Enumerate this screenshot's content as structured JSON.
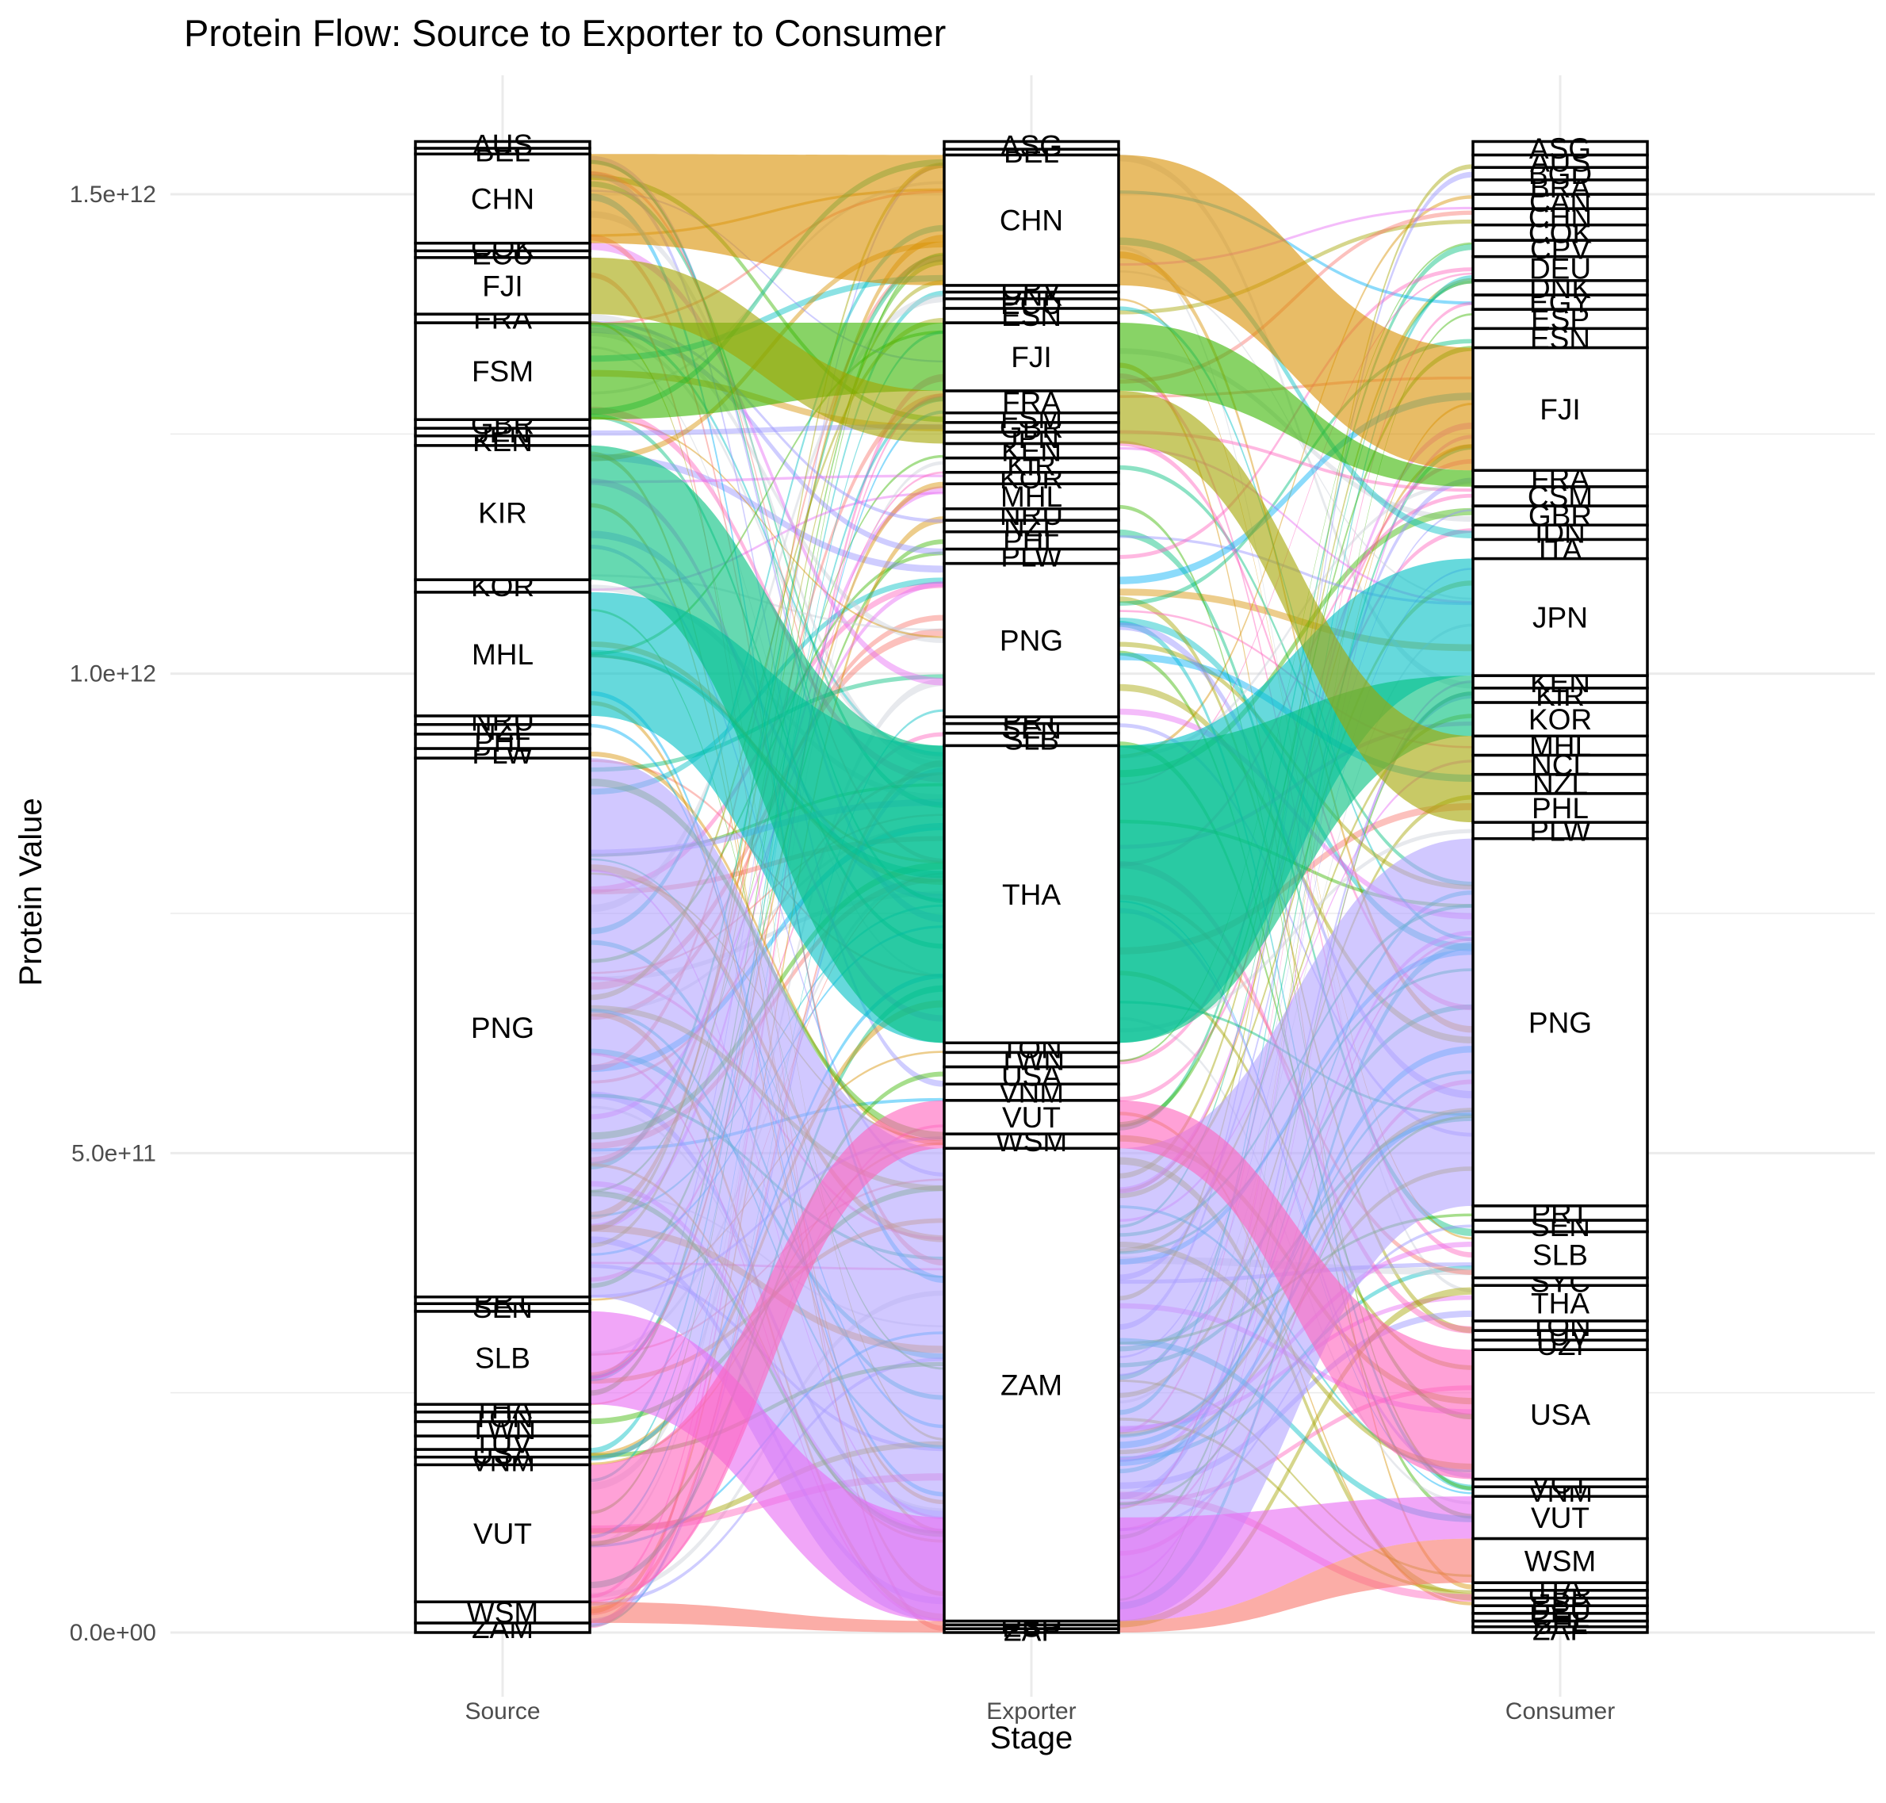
{
  "title": "Protein Flow: Source to Exporter to Consumer",
  "colors": {
    "AUS": "#F8766D",
    "CHN": "#D89000",
    "FJI": "#A3A500",
    "FRA": "#72B000",
    "FSM": "#39B600",
    "KIR": "#00BF7D",
    "MHL": "#00BFC4",
    "PNG": "#B2A3FF",
    "SLB": "#E76BF3",
    "VUT": "#FF62BC",
    "WSM": "#F8766D",
    "misc": "#C9CED6"
  },
  "chart_data": {
    "type": "alluvial",
    "title": "Protein Flow: Source to Exporter to Consumer",
    "xlabel": "Stage",
    "ylabel": "Protein Value",
    "ylim": [
      0,
      1550000000000
    ],
    "y_ticks": [
      0,
      500000000000,
      1000000000000,
      1500000000000
    ],
    "y_tick_labels": [
      "0.0e+00",
      "5.0e+11",
      "1.0e+12",
      "1.5e+12"
    ],
    "axes": [
      "Source",
      "Exporter",
      "Consumer"
    ],
    "strata": {
      "Source": [
        {
          "label": "ZAM",
          "lo": 0,
          "hi": 10000000000
        },
        {
          "label": "WSM",
          "lo": 10000000000,
          "hi": 32000000000
        },
        {
          "label": "VUT",
          "lo": 32000000000,
          "hi": 175000000000
        },
        {
          "label": "VNM",
          "lo": 175000000000,
          "hi": 183000000000
        },
        {
          "label": "USA",
          "lo": 183000000000,
          "hi": 191000000000
        },
        {
          "label": "TUV",
          "lo": 191000000000,
          "hi": 205000000000
        },
        {
          "label": "TWN",
          "lo": 205000000000,
          "hi": 220000000000
        },
        {
          "label": "TON",
          "lo": 220000000000,
          "hi": 230000000000
        },
        {
          "label": "THA",
          "lo": 230000000000,
          "hi": 238000000000
        },
        {
          "label": "SLB",
          "lo": 238000000000,
          "hi": 335000000000
        },
        {
          "label": "SEN",
          "lo": 335000000000,
          "hi": 343000000000
        },
        {
          "label": "PRT",
          "lo": 343000000000,
          "hi": 350000000000
        },
        {
          "label": "PNG",
          "lo": 350000000000,
          "hi": 912000000000
        },
        {
          "label": "PLW",
          "lo": 912000000000,
          "hi": 922000000000
        },
        {
          "label": "PHL",
          "lo": 922000000000,
          "hi": 937000000000
        },
        {
          "label": "NZL",
          "lo": 937000000000,
          "hi": 947000000000
        },
        {
          "label": "NRU",
          "lo": 947000000000,
          "hi": 956000000000
        },
        {
          "label": "MHL",
          "lo": 956000000000,
          "hi": 1085000000000
        },
        {
          "label": "KOR",
          "lo": 1085000000000,
          "hi": 1098000000000
        },
        {
          "label": "KIR",
          "lo": 1098000000000,
          "hi": 1238000000000
        },
        {
          "label": "KEN",
          "lo": 1238000000000,
          "hi": 1248000000000
        },
        {
          "label": "JPN",
          "lo": 1248000000000,
          "hi": 1256000000000
        },
        {
          "label": "GBR",
          "lo": 1256000000000,
          "hi": 1265000000000
        },
        {
          "label": "FSM",
          "lo": 1265000000000,
          "hi": 1366000000000
        },
        {
          "label": "FRA",
          "lo": 1366000000000,
          "hi": 1375000000000
        },
        {
          "label": "FJI",
          "lo": 1375000000000,
          "hi": 1434000000000
        },
        {
          "label": "ECU",
          "lo": 1434000000000,
          "hi": 1441000000000
        },
        {
          "label": "COK",
          "lo": 1441000000000,
          "hi": 1449000000000
        },
        {
          "label": "CHN",
          "lo": 1449000000000,
          "hi": 1542000000000
        },
        {
          "label": "BEL",
          "lo": 1542000000000,
          "hi": 1548000000000
        },
        {
          "label": "AUS",
          "lo": 1548000000000,
          "hi": 1555000000000
        }
      ],
      "Exporter": [
        {
          "label": "ZAF",
          "lo": 0,
          "hi": 4000000000
        },
        {
          "label": "ESP",
          "lo": 4000000000,
          "hi": 8000000000
        },
        {
          "label": "DEU",
          "lo": 8000000000,
          "hi": 12000000000
        },
        {
          "label": "ZAM",
          "lo": 12000000000,
          "hi": 505000000000
        },
        {
          "label": "WSM",
          "lo": 505000000000,
          "hi": 520000000000
        },
        {
          "label": "VUT",
          "lo": 520000000000,
          "hi": 555000000000
        },
        {
          "label": "VNM",
          "lo": 555000000000,
          "hi": 572000000000
        },
        {
          "label": "USA",
          "lo": 572000000000,
          "hi": 590000000000
        },
        {
          "label": "TWN",
          "lo": 590000000000,
          "hi": 605000000000
        },
        {
          "label": "TON",
          "lo": 605000000000,
          "hi": 615000000000
        },
        {
          "label": "THA",
          "lo": 615000000000,
          "hi": 925000000000
        },
        {
          "label": "SLB",
          "lo": 925000000000,
          "hi": 938000000000
        },
        {
          "label": "SEN",
          "lo": 938000000000,
          "hi": 948000000000
        },
        {
          "label": "PRT",
          "lo": 948000000000,
          "hi": 955000000000
        },
        {
          "label": "PNG",
          "lo": 955000000000,
          "hi": 1115000000000
        },
        {
          "label": "PLW",
          "lo": 1115000000000,
          "hi": 1130000000000
        },
        {
          "label": "PHL",
          "lo": 1130000000000,
          "hi": 1148000000000
        },
        {
          "label": "NZL",
          "lo": 1148000000000,
          "hi": 1160000000000
        },
        {
          "label": "NRU",
          "lo": 1160000000000,
          "hi": 1172000000000
        },
        {
          "label": "MHL",
          "lo": 1172000000000,
          "hi": 1198000000000
        },
        {
          "label": "KOR",
          "lo": 1198000000000,
          "hi": 1210000000000
        },
        {
          "label": "KIR",
          "lo": 1210000000000,
          "hi": 1225000000000
        },
        {
          "label": "KEN",
          "lo": 1225000000000,
          "hi": 1240000000000
        },
        {
          "label": "JPN",
          "lo": 1240000000000,
          "hi": 1252000000000
        },
        {
          "label": "GBR",
          "lo": 1252000000000,
          "hi": 1262000000000
        },
        {
          "label": "FSM",
          "lo": 1262000000000,
          "hi": 1272000000000
        },
        {
          "label": "FRA",
          "lo": 1272000000000,
          "hi": 1295000000000
        },
        {
          "label": "FJI",
          "lo": 1295000000000,
          "hi": 1366000000000
        },
        {
          "label": "ESN",
          "lo": 1366000000000,
          "hi": 1381000000000
        },
        {
          "label": "ECU",
          "lo": 1381000000000,
          "hi": 1391000000000
        },
        {
          "label": "DNK",
          "lo": 1391000000000,
          "hi": 1398000000000
        },
        {
          "label": "CPV",
          "lo": 1398000000000,
          "hi": 1405000000000
        },
        {
          "label": "CHN",
          "lo": 1405000000000,
          "hi": 1541000000000
        },
        {
          "label": "BEL",
          "lo": 1541000000000,
          "hi": 1547000000000
        },
        {
          "label": "ASG",
          "lo": 1547000000000,
          "hi": 1555000000000
        }
      ],
      "Consumer": [
        {
          "label": "ZAF",
          "lo": 0,
          "hi": 6000000000
        },
        {
          "label": "BEL",
          "lo": 6000000000,
          "hi": 12000000000
        },
        {
          "label": "CHL",
          "lo": 12000000000,
          "hi": 20000000000
        },
        {
          "label": "DEU",
          "lo": 20000000000,
          "hi": 28000000000
        },
        {
          "label": "ESP",
          "lo": 28000000000,
          "hi": 36000000000
        },
        {
          "label": "GBR",
          "lo": 36000000000,
          "hi": 44000000000
        },
        {
          "label": "ITA",
          "lo": 44000000000,
          "hi": 52000000000
        },
        {
          "label": "WSM",
          "lo": 52000000000,
          "hi": 98000000000
        },
        {
          "label": "VUT",
          "lo": 98000000000,
          "hi": 142000000000
        },
        {
          "label": "VNM",
          "lo": 142000000000,
          "hi": 152000000000
        },
        {
          "label": "VCT",
          "lo": 152000000000,
          "hi": 160000000000
        },
        {
          "label": "USA",
          "lo": 160000000000,
          "hi": 295000000000
        },
        {
          "label": "UZI",
          "lo": 295000000000,
          "hi": 305000000000
        },
        {
          "label": "TUV",
          "lo": 305000000000,
          "hi": 315000000000
        },
        {
          "label": "TON",
          "lo": 315000000000,
          "hi": 325000000000
        },
        {
          "label": "THA",
          "lo": 325000000000,
          "hi": 362000000000
        },
        {
          "label": "SYC",
          "lo": 362000000000,
          "hi": 370000000000
        },
        {
          "label": "SLB",
          "lo": 370000000000,
          "hi": 418000000000
        },
        {
          "label": "SEN",
          "lo": 418000000000,
          "hi": 430000000000
        },
        {
          "label": "PRT",
          "lo": 430000000000,
          "hi": 445000000000
        },
        {
          "label": "PNG",
          "lo": 445000000000,
          "hi": 828000000000
        },
        {
          "label": "PLW",
          "lo": 828000000000,
          "hi": 845000000000
        },
        {
          "label": "PHL",
          "lo": 845000000000,
          "hi": 875000000000
        },
        {
          "label": "NZL",
          "lo": 875000000000,
          "hi": 895000000000
        },
        {
          "label": "NCL",
          "lo": 895000000000,
          "hi": 915000000000
        },
        {
          "label": "MHL",
          "lo": 915000000000,
          "hi": 935000000000
        },
        {
          "label": "KOR",
          "lo": 935000000000,
          "hi": 970000000000
        },
        {
          "label": "KIR",
          "lo": 970000000000,
          "hi": 985000000000
        },
        {
          "label": "KEN",
          "lo": 985000000000,
          "hi": 998000000000
        },
        {
          "label": "JPN",
          "lo": 998000000000,
          "hi": 1120000000000
        },
        {
          "label": "ITA",
          "lo": 1120000000000,
          "hi": 1140000000000
        },
        {
          "label": "IDN",
          "lo": 1140000000000,
          "hi": 1155000000000
        },
        {
          "label": "GBR",
          "lo": 1155000000000,
          "hi": 1175000000000
        },
        {
          "label": "CSM",
          "lo": 1175000000000,
          "hi": 1195000000000
        },
        {
          "label": "FRA",
          "lo": 1195000000000,
          "hi": 1212000000000
        },
        {
          "label": "FJI",
          "lo": 1212000000000,
          "hi": 1340000000000
        },
        {
          "label": "ESN",
          "lo": 1340000000000,
          "hi": 1360000000000
        },
        {
          "label": "ESP",
          "lo": 1360000000000,
          "hi": 1380000000000
        },
        {
          "label": "EGY",
          "lo": 1380000000000,
          "hi": 1395000000000
        },
        {
          "label": "DNK",
          "lo": 1395000000000,
          "hi": 1410000000000
        },
        {
          "label": "DEU",
          "lo": 1410000000000,
          "hi": 1435000000000
        },
        {
          "label": "CPV",
          "lo": 1435000000000,
          "hi": 1452000000000
        },
        {
          "label": "COK",
          "lo": 1452000000000,
          "hi": 1468000000000
        },
        {
          "label": "CHN",
          "lo": 1468000000000,
          "hi": 1485000000000
        },
        {
          "label": "CAN",
          "lo": 1485000000000,
          "hi": 1500000000000
        },
        {
          "label": "BRA",
          "lo": 1500000000000,
          "hi": 1515000000000
        },
        {
          "label": "BGD",
          "lo": 1515000000000,
          "hi": 1528000000000
        },
        {
          "label": "AUS",
          "lo": 1528000000000,
          "hi": 1541000000000
        },
        {
          "label": "ASG",
          "lo": 1541000000000,
          "hi": 1555000000000
        }
      ]
    },
    "major_flows": [
      {
        "group": "PNG",
        "s": [
          350000000000,
          912000000000
        ],
        "e": [
          12000000000,
          505000000000
        ],
        "c": [
          445000000000,
          828000000000
        ]
      },
      {
        "group": "CHN",
        "s": [
          1449000000000,
          1542000000000
        ],
        "e": [
          1405000000000,
          1541000000000
        ],
        "c": [
          1212000000000,
          1340000000000
        ]
      },
      {
        "group": "SLB",
        "s": [
          238000000000,
          335000000000
        ],
        "e": [
          12000000000,
          120000000000
        ],
        "c": [
          98000000000,
          142000000000
        ]
      },
      {
        "group": "VUT",
        "s": [
          32000000000,
          175000000000
        ],
        "e": [
          505000000000,
          555000000000
        ],
        "c": [
          160000000000,
          295000000000
        ]
      },
      {
        "group": "WSM",
        "s": [
          10000000000,
          32000000000
        ],
        "e": [
          0,
          12000000000
        ],
        "c": [
          52000000000,
          98000000000
        ]
      },
      {
        "group": "MHL",
        "s": [
          956000000000,
          1085000000000
        ],
        "e": [
          615000000000,
          925000000000
        ],
        "c": [
          998000000000,
          1120000000000
        ]
      },
      {
        "group": "KIR",
        "s": [
          1098000000000,
          1238000000000
        ],
        "e": [
          615000000000,
          925000000000
        ],
        "c": [
          935000000000,
          998000000000
        ]
      },
      {
        "group": "FSM",
        "s": [
          1265000000000,
          1366000000000
        ],
        "e": [
          1295000000000,
          1366000000000
        ],
        "c": [
          1195000000000,
          1212000000000
        ]
      },
      {
        "group": "FJI",
        "s": [
          1375000000000,
          1434000000000
        ],
        "e": [
          1240000000000,
          1295000000000
        ],
        "c": [
          845000000000,
          935000000000
        ]
      }
    ]
  }
}
